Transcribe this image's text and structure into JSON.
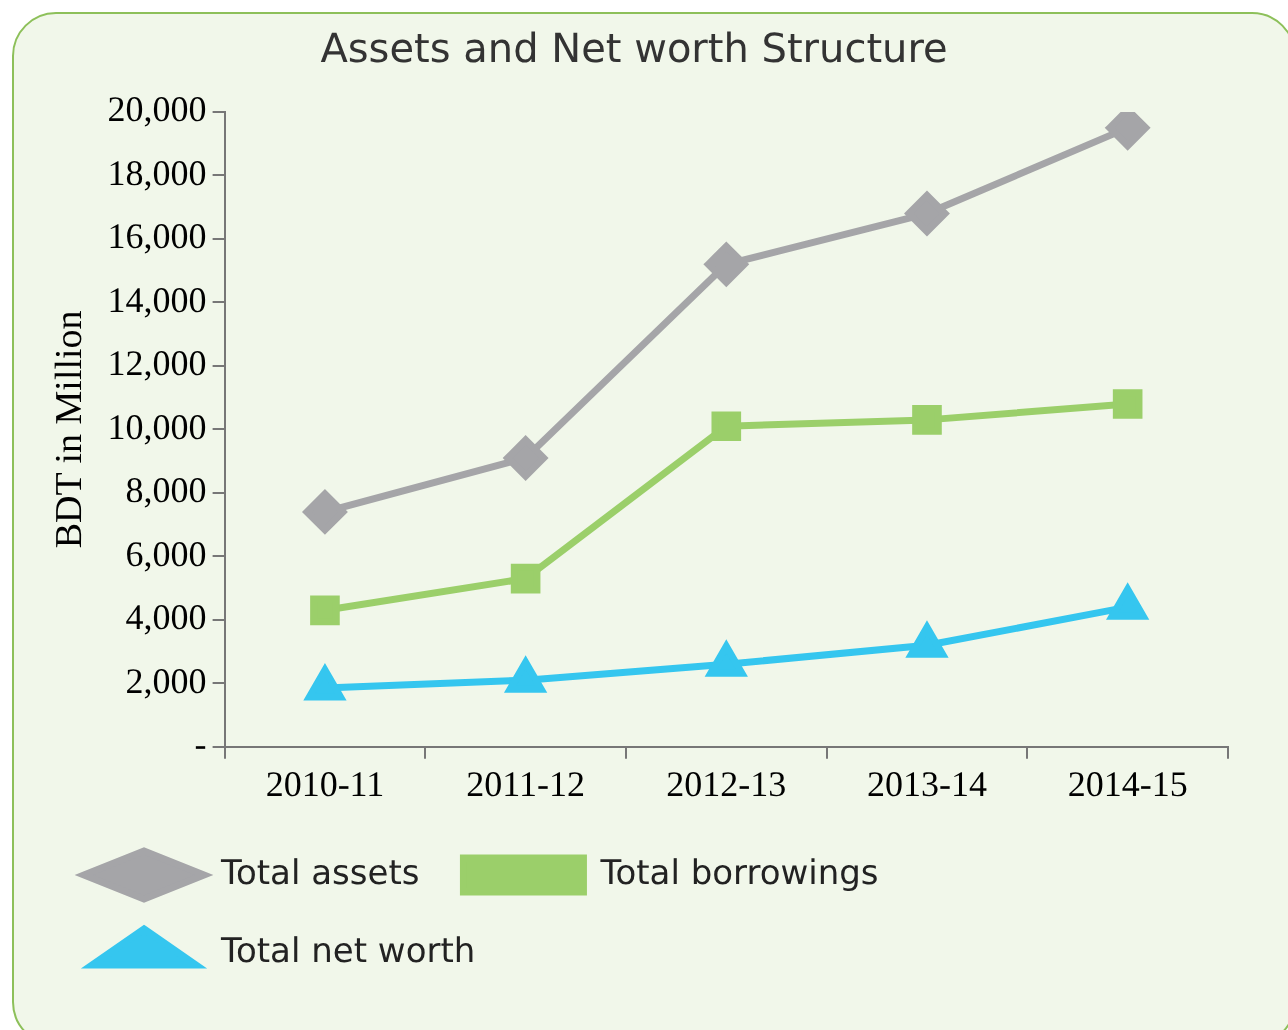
{
  "chart_data": {
    "type": "line",
    "title": "Assets and Net worth Structure",
    "ylabel": "BDT in Million",
    "categories": [
      "2010-11",
      "2011-12",
      "2012-13",
      "2013-14",
      "2014-15"
    ],
    "series": [
      {
        "name": "Total assets",
        "color": "#a5a5a8",
        "marker": "diamond",
        "values": [
          7400,
          9100,
          15200,
          16800,
          19500
        ]
      },
      {
        "name": "Total borrowings",
        "color": "#9bcf6a",
        "marker": "square",
        "values": [
          4300,
          5300,
          10100,
          10300,
          10800
        ]
      },
      {
        "name": "Total net worth",
        "color": "#35c6ef",
        "marker": "triangle",
        "values": [
          1850,
          2100,
          2600,
          3200,
          4400
        ]
      }
    ],
    "ylim": [
      0,
      20000
    ],
    "yticks": [
      {
        "value": 0,
        "label": "-"
      },
      {
        "value": 2000,
        "label": "2,000"
      },
      {
        "value": 4000,
        "label": "4,000"
      },
      {
        "value": 6000,
        "label": "6,000"
      },
      {
        "value": 8000,
        "label": "8,000"
      },
      {
        "value": 10000,
        "label": "10,000"
      },
      {
        "value": 12000,
        "label": "12,000"
      },
      {
        "value": 14000,
        "label": "14,000"
      },
      {
        "value": 16000,
        "label": "16,000"
      },
      {
        "value": 18000,
        "label": "18,000"
      },
      {
        "value": 20000,
        "label": "20,000"
      }
    ],
    "grid": false,
    "legend": "bottom",
    "line_style": "solid"
  }
}
